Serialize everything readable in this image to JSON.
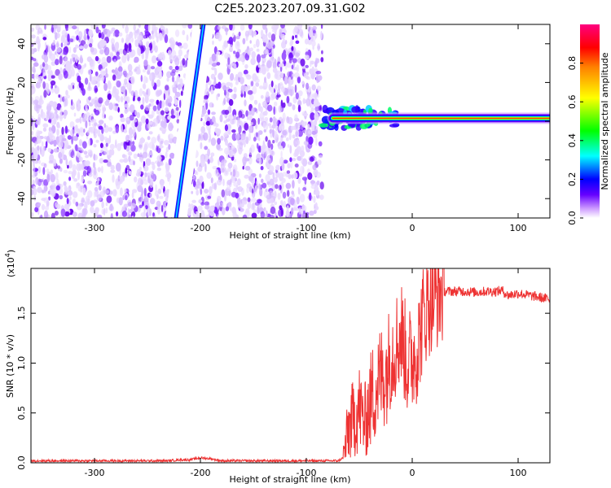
{
  "title": "C2E5.2023.207.09.31.G02",
  "chart_data": [
    {
      "type": "heatmap",
      "xlabel": "Height of straight line (km)",
      "ylabel": "Frequency (Hz)",
      "xlim": [
        -360,
        130
      ],
      "ylim": [
        -50,
        50
      ],
      "xticks": [
        -300,
        -200,
        -100,
        0,
        100
      ],
      "yticks": [
        -40,
        -20,
        0,
        20,
        40
      ],
      "colorbar": {
        "label": "Normalized spectral amplitude",
        "range": [
          0,
          1
        ],
        "ticks": [
          "0.0",
          "0.2",
          "0.4",
          "0.6",
          "0.8"
        ],
        "colors": [
          "#ffffff",
          "#cc99ff",
          "#6600ff",
          "#0000ff",
          "#00ffff",
          "#00ff00",
          "#ffff00",
          "#ff8000",
          "#ff0000",
          "#ff0080"
        ]
      },
      "features": {
        "noise_region_x": [
          -360,
          -85
        ],
        "signal_line": {
          "x": [
            -85,
            130
          ],
          "frequency": 1.5
        },
        "diagonal_trace": [
          [
            -223,
            -50
          ],
          [
            -197,
            50
          ]
        ]
      }
    },
    {
      "type": "line",
      "xlabel": "Height of straight line (km)",
      "ylabel": "SNR (10 * v/v)",
      "exponent_label": "(x10",
      "exponent_sup": "4",
      "exponent_close": ")",
      "xlim": [
        -360,
        130
      ],
      "ylim": [
        0,
        1.95
      ],
      "xticks": [
        -300,
        -200,
        -100,
        0,
        100
      ],
      "yticks": [
        "0.0",
        "0.5",
        "1.0",
        "1.5"
      ],
      "color": "#ee3333",
      "series": [
        {
          "x": [
            -360,
            -230,
            -220,
            -210,
            -200,
            -190,
            -180,
            -150,
            -120,
            -90,
            -70,
            -65,
            -60,
            -55,
            -50,
            -45,
            -40,
            -35,
            -30,
            -25,
            -20,
            -15,
            -10,
            -5,
            0,
            5,
            10,
            15,
            20,
            25,
            30,
            40,
            50,
            60,
            70,
            80,
            85,
            90,
            100,
            110,
            120,
            130
          ],
          "y": [
            0.02,
            0.02,
            0.03,
            0.03,
            0.05,
            0.04,
            0.02,
            0.02,
            0.02,
            0.02,
            0.02,
            0.05,
            0.35,
            0.45,
            0.55,
            0.4,
            0.6,
            0.75,
            0.85,
            0.9,
            1.1,
            1.2,
            1.3,
            1.0,
            1.05,
            1.15,
            1.45,
            1.6,
            1.65,
            1.7,
            1.72,
            1.72,
            1.72,
            1.71,
            1.72,
            1.72,
            1.73,
            1.68,
            1.7,
            1.68,
            1.66,
            1.64
          ]
        }
      ]
    }
  ]
}
